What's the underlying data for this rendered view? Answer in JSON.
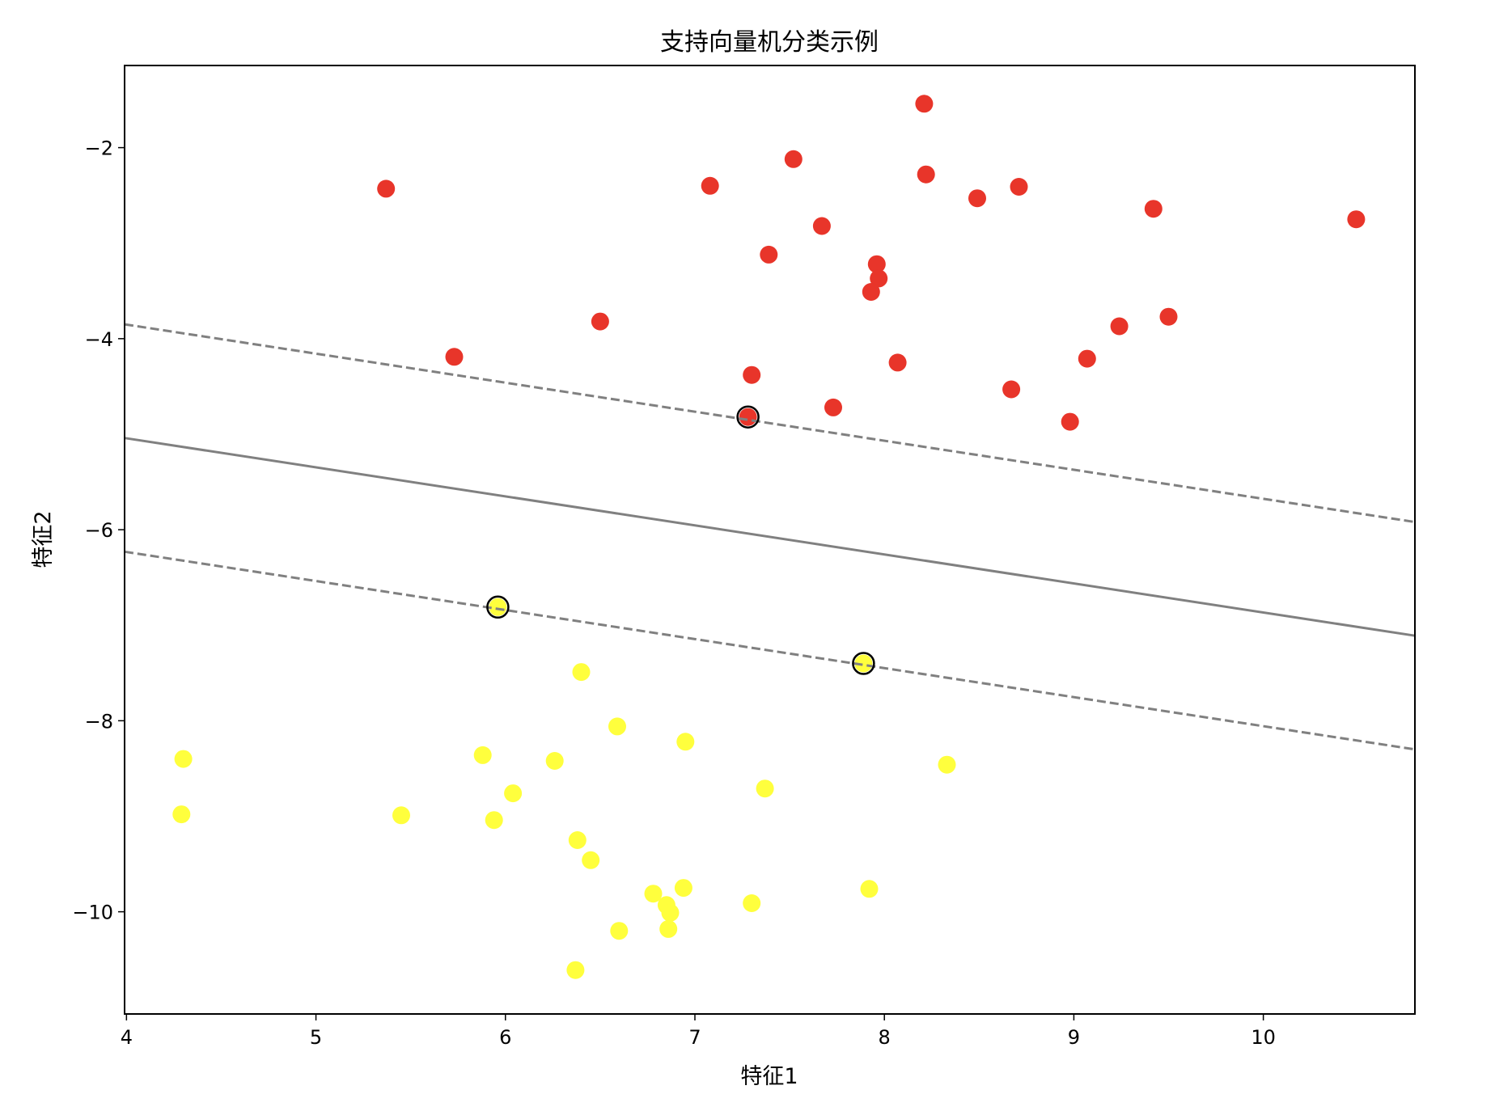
{
  "chart_data": {
    "type": "scatter",
    "title": "支持向量机分类示例",
    "xlabel": "特征1",
    "ylabel": "特征2",
    "xlim": [
      3.99,
      10.8
    ],
    "ylim": [
      -11.07,
      -1.14
    ],
    "xticks": [
      4,
      5,
      6,
      7,
      8,
      9,
      10
    ],
    "yticks": [
      -2,
      -4,
      -6,
      -8,
      -10
    ],
    "ytick_labels": [
      "−2",
      "−4",
      "−6",
      "−8",
      "−10"
    ],
    "grid": false,
    "colors": {
      "class_red": "#e8352a",
      "class_yellow": "#ffff3d",
      "boundary": "#808080",
      "support_edge": "#000000"
    },
    "series": [
      {
        "class": "red",
        "points": [
          [
            5.37,
            -2.43
          ],
          [
            7.08,
            -2.4
          ],
          [
            7.52,
            -2.12
          ],
          [
            8.21,
            -1.54
          ],
          [
            8.22,
            -2.28
          ],
          [
            8.49,
            -2.53
          ],
          [
            8.71,
            -2.41
          ],
          [
            9.42,
            -2.64
          ],
          [
            10.49,
            -2.75
          ],
          [
            7.67,
            -2.82
          ],
          [
            7.39,
            -3.12
          ],
          [
            7.96,
            -3.22
          ],
          [
            7.97,
            -3.37
          ],
          [
            7.93,
            -3.51
          ],
          [
            6.5,
            -3.82
          ],
          [
            9.5,
            -3.77
          ],
          [
            9.24,
            -3.87
          ],
          [
            5.73,
            -4.19
          ],
          [
            9.07,
            -4.21
          ],
          [
            8.07,
            -4.25
          ],
          [
            7.3,
            -4.38
          ],
          [
            8.67,
            -4.53
          ],
          [
            7.73,
            -4.72
          ],
          [
            8.98,
            -4.87
          ],
          [
            7.28,
            -4.82
          ]
        ]
      },
      {
        "class": "yellow",
        "points": [
          [
            5.96,
            -6.81
          ],
          [
            7.89,
            -7.4
          ],
          [
            6.4,
            -7.49
          ],
          [
            6.59,
            -8.06
          ],
          [
            6.95,
            -8.22
          ],
          [
            4.3,
            -8.4
          ],
          [
            5.88,
            -8.36
          ],
          [
            6.26,
            -8.42
          ],
          [
            8.33,
            -8.46
          ],
          [
            6.04,
            -8.76
          ],
          [
            7.37,
            -8.71
          ],
          [
            4.29,
            -8.98
          ],
          [
            5.45,
            -8.99
          ],
          [
            5.94,
            -9.04
          ],
          [
            6.38,
            -9.25
          ],
          [
            6.45,
            -9.46
          ],
          [
            6.94,
            -9.75
          ],
          [
            7.92,
            -9.76
          ],
          [
            6.78,
            -9.81
          ],
          [
            6.85,
            -9.93
          ],
          [
            6.87,
            -10.01
          ],
          [
            7.3,
            -9.91
          ],
          [
            6.6,
            -10.2
          ],
          [
            6.86,
            -10.18
          ],
          [
            6.37,
            -10.61
          ]
        ]
      }
    ],
    "support_vectors": [
      [
        7.28,
        -4.82
      ],
      [
        5.96,
        -6.81
      ],
      [
        7.89,
        -7.4
      ]
    ],
    "decision_lines": [
      {
        "kind": "margin",
        "style": "dashed",
        "endpoints": [
          [
            3.99,
            -3.85
          ],
          [
            10.8,
            -5.92
          ]
        ]
      },
      {
        "kind": "boundary",
        "style": "solid",
        "endpoints": [
          [
            3.99,
            -5.04
          ],
          [
            10.8,
            -7.11
          ]
        ]
      },
      {
        "kind": "margin",
        "style": "dashed",
        "endpoints": [
          [
            3.99,
            -6.23
          ],
          [
            10.8,
            -8.3
          ]
        ]
      }
    ]
  }
}
